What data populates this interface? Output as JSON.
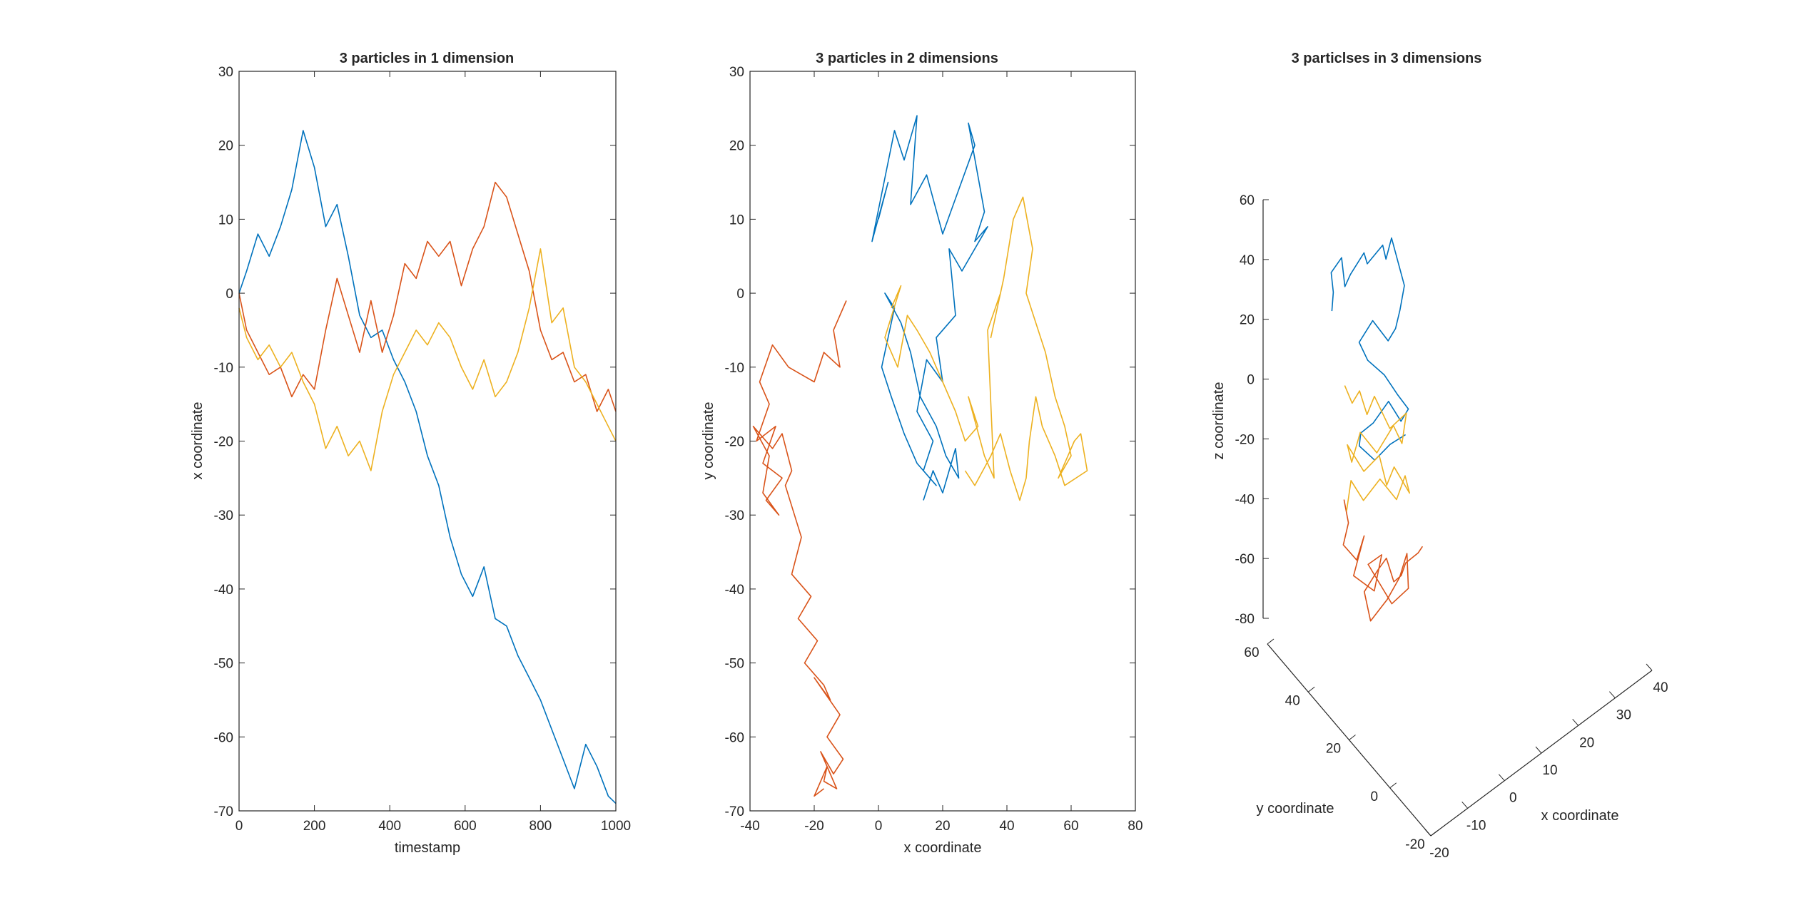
{
  "colors": {
    "particle_1": "#0072BD",
    "particle_2": "#D95319",
    "particle_3": "#EDB120",
    "axis": "#262626",
    "background": "#ffffff"
  },
  "chart_data": [
    {
      "type": "line",
      "title": "3 particles in 1 dimension",
      "xlabel": "timestamp",
      "ylabel": "x coordinate",
      "xlim": [
        0,
        1000
      ],
      "ylim": [
        -70,
        30
      ],
      "xticks": [
        "0",
        "200",
        "400",
        "600",
        "800",
        "1000"
      ],
      "yticks": [
        "-70",
        "-60",
        "-50",
        "-40",
        "-30",
        "-20",
        "-10",
        "0",
        "10",
        "20",
        "30"
      ],
      "grid": false,
      "series": [
        {
          "x": [
            0,
            20,
            50,
            80,
            110,
            140,
            170,
            200,
            230,
            260,
            290,
            320,
            350,
            380,
            410,
            440,
            470,
            500,
            530,
            560,
            590,
            620,
            650,
            680,
            710,
            740,
            770,
            800,
            830,
            860,
            890,
            920,
            950,
            980,
            1000
          ],
          "values": [
            0,
            3,
            8,
            5,
            9,
            14,
            22,
            17,
            9,
            12,
            5,
            -3,
            -6,
            -5,
            -9,
            -12,
            -16,
            -22,
            -26,
            -33,
            -38,
            -41,
            -37,
            -44,
            -45,
            -49,
            -52,
            -55,
            -59,
            -63,
            -67,
            -61,
            -64,
            -68,
            -69
          ]
        },
        {
          "x": [
            0,
            20,
            50,
            80,
            110,
            140,
            170,
            200,
            230,
            260,
            290,
            320,
            350,
            380,
            410,
            440,
            470,
            500,
            530,
            560,
            590,
            620,
            650,
            680,
            710,
            740,
            770,
            800,
            830,
            860,
            890,
            920,
            950,
            980,
            1000
          ],
          "values": [
            0,
            -5,
            -8,
            -11,
            -10,
            -14,
            -11,
            -13,
            -5,
            2,
            -3,
            -8,
            -1,
            -8,
            -3,
            4,
            2,
            7,
            5,
            7,
            1,
            6,
            9,
            15,
            13,
            8,
            3,
            -5,
            -9,
            -8,
            -12,
            -11,
            -16,
            -13,
            -16
          ]
        },
        {
          "x": [
            0,
            20,
            50,
            80,
            110,
            140,
            170,
            200,
            230,
            260,
            290,
            320,
            350,
            380,
            410,
            440,
            470,
            500,
            530,
            560,
            590,
            620,
            650,
            680,
            710,
            740,
            770,
            800,
            830,
            860,
            890,
            920,
            950,
            980,
            1000
          ],
          "values": [
            -2,
            -6,
            -9,
            -7,
            -10,
            -8,
            -12,
            -15,
            -21,
            -18,
            -22,
            -20,
            -24,
            -16,
            -11,
            -8,
            -5,
            -7,
            -4,
            -6,
            -10,
            -13,
            -9,
            -14,
            -12,
            -8,
            -2,
            6,
            -4,
            -2,
            -10,
            -12,
            -15,
            -18,
            -20
          ]
        }
      ]
    },
    {
      "type": "line",
      "title": "3 particles in 2 dimensions",
      "xlabel": "x coordinate",
      "ylabel": "y coordinate",
      "xlim": [
        -40,
        80
      ],
      "ylim": [
        -70,
        30
      ],
      "xticks": [
        "-40",
        "-20",
        "0",
        "20",
        "40",
        "60",
        "80"
      ],
      "yticks": [
        "-70",
        "-60",
        "-50",
        "-40",
        "-30",
        "-20",
        "-10",
        "0",
        "10",
        "20",
        "30"
      ],
      "grid": false,
      "series": [
        {
          "x": [
            0,
            3,
            -2,
            5,
            8,
            12,
            10,
            15,
            20,
            25,
            30,
            28,
            33,
            30,
            34,
            26,
            22,
            24,
            18,
            20,
            15,
            12,
            17,
            14,
            18,
            12,
            8,
            4,
            1,
            3,
            5,
            2,
            7,
            10,
            13,
            18,
            21,
            25,
            24,
            20,
            17,
            14
          ],
          "values": [
            10,
            15,
            7,
            22,
            18,
            24,
            12,
            16,
            8,
            14,
            20,
            23,
            11,
            7,
            9,
            3,
            6,
            -3,
            -6,
            -12,
            -9,
            -16,
            -20,
            -24,
            -26,
            -23,
            -19,
            -14,
            -10,
            -6,
            -2,
            0,
            -4,
            -8,
            -14,
            -18,
            -22,
            -25,
            -21,
            -27,
            -24,
            -28
          ]
        },
        {
          "x": [
            -10,
            -14,
            -12,
            -17,
            -20,
            -24,
            -28,
            -33,
            -37,
            -34,
            -38,
            -32,
            -36,
            -30,
            -35,
            -31,
            -36,
            -34,
            -39,
            -33,
            -30,
            -27,
            -29,
            -24,
            -27,
            -21,
            -25,
            -19,
            -23,
            -17,
            -15,
            -20,
            -12,
            -16,
            -11,
            -14,
            -18,
            -13,
            -17,
            -16,
            -20,
            -17
          ],
          "values": [
            -1,
            -5,
            -10,
            -8,
            -12,
            -11,
            -10,
            -7,
            -12,
            -15,
            -20,
            -18,
            -23,
            -25,
            -28,
            -30,
            -27,
            -22,
            -18,
            -21,
            -19,
            -24,
            -26,
            -33,
            -38,
            -41,
            -44,
            -47,
            -50,
            -53,
            -55,
            -52,
            -57,
            -60,
            -63,
            -65,
            -62,
            -67,
            -66,
            -64,
            -68,
            -67
          ]
        },
        {
          "x": [
            4,
            7,
            2,
            6,
            9,
            12,
            16,
            20,
            24,
            27,
            31,
            28,
            33,
            36,
            34,
            38,
            35,
            39,
            42,
            45,
            48,
            46,
            49,
            52,
            55,
            58,
            60,
            56,
            61,
            63,
            65,
            58,
            55,
            51,
            49,
            47,
            46,
            44,
            41,
            38,
            35,
            30,
            27
          ],
          "values": [
            -2,
            1,
            -6,
            -10,
            -3,
            -5,
            -8,
            -12,
            -16,
            -20,
            -18,
            -14,
            -22,
            -25,
            -5,
            0,
            -6,
            2,
            10,
            13,
            6,
            0,
            -4,
            -8,
            -14,
            -18,
            -22,
            -25,
            -20,
            -19,
            -24,
            -26,
            -22,
            -18,
            -14,
            -20,
            -25,
            -28,
            -24,
            -19,
            -22,
            -26,
            -24
          ]
        }
      ]
    },
    {
      "type": "line",
      "title": "3 particlses in 3 dimensions",
      "xlabel": "x coordinate",
      "ylabel": "y coordinate",
      "zlabel": "z coordinate",
      "xlim": [
        -20,
        40
      ],
      "ylim": [
        -20,
        60
      ],
      "zlim": [
        -80,
        60
      ],
      "xticks": [
        "-20",
        "-10",
        "0",
        "10",
        "20",
        "30",
        "40"
      ],
      "yticks": [
        "-20",
        "0",
        "20",
        "40",
        "60"
      ],
      "zticks": [
        "-80",
        "-60",
        "-40",
        "-20",
        "0",
        "20",
        "40",
        "60"
      ],
      "grid": false,
      "series": [
        {
          "x": [
            2,
            4,
            1,
            6,
            9,
            12,
            15,
            18,
            22,
            25,
            28,
            30,
            27,
            24,
            20,
            16,
            13,
            17,
            21,
            24,
            26,
            22,
            19,
            15,
            12,
            10,
            14,
            18,
            22
          ],
          "y": [
            20,
            24,
            18,
            22,
            27,
            30,
            26,
            31,
            28,
            33,
            36,
            30,
            26,
            22,
            18,
            21,
            25,
            28,
            24,
            20,
            16,
            12,
            15,
            18,
            21,
            17,
            14,
            11,
            8
          ],
          "z": [
            22,
            28,
            35,
            40,
            30,
            34,
            42,
            38,
            45,
            40,
            47,
            32,
            24,
            18,
            14,
            20,
            12,
            6,
            2,
            -4,
            -8,
            -12,
            -6,
            -14,
            -18,
            -22,
            -26,
            -20,
            -16
          ]
        },
        {
          "x": [
            3,
            6,
            2,
            8,
            12,
            10,
            15,
            19,
            16,
            22,
            26,
            24,
            20,
            17,
            13,
            9,
            12,
            16,
            20,
            24,
            27,
            30,
            33
          ],
          "y": [
            12,
            16,
            10,
            14,
            18,
            22,
            17,
            21,
            25,
            20,
            16,
            12,
            8,
            11,
            15,
            10,
            6,
            9,
            13,
            17,
            21,
            18,
            22
          ],
          "z": [
            -40,
            -48,
            -55,
            -60,
            -52,
            -66,
            -70,
            -58,
            -62,
            -74,
            -68,
            -56,
            -64,
            -72,
            -80,
            -70,
            -62,
            -58,
            -66,
            -64,
            -60,
            -56,
            -54
          ]
        },
        {
          "x": [
            4,
            8,
            12,
            16,
            20,
            24,
            28,
            25,
            21,
            17,
            13,
            9,
            6,
            10,
            14,
            18,
            22,
            26,
            23,
            19,
            15,
            11,
            8,
            5
          ],
          "y": [
            14,
            18,
            22,
            26,
            30,
            27,
            23,
            19,
            16,
            20,
            24,
            21,
            17,
            13,
            10,
            14,
            18,
            15,
            11,
            8,
            12,
            16,
            19,
            15
          ],
          "z": [
            -2,
            -8,
            -4,
            -12,
            -6,
            -16,
            -10,
            -20,
            -14,
            -24,
            -18,
            -28,
            -22,
            -30,
            -24,
            -34,
            -28,
            -36,
            -30,
            -38,
            -32,
            -40,
            -34,
            -44
          ]
        }
      ]
    }
  ]
}
